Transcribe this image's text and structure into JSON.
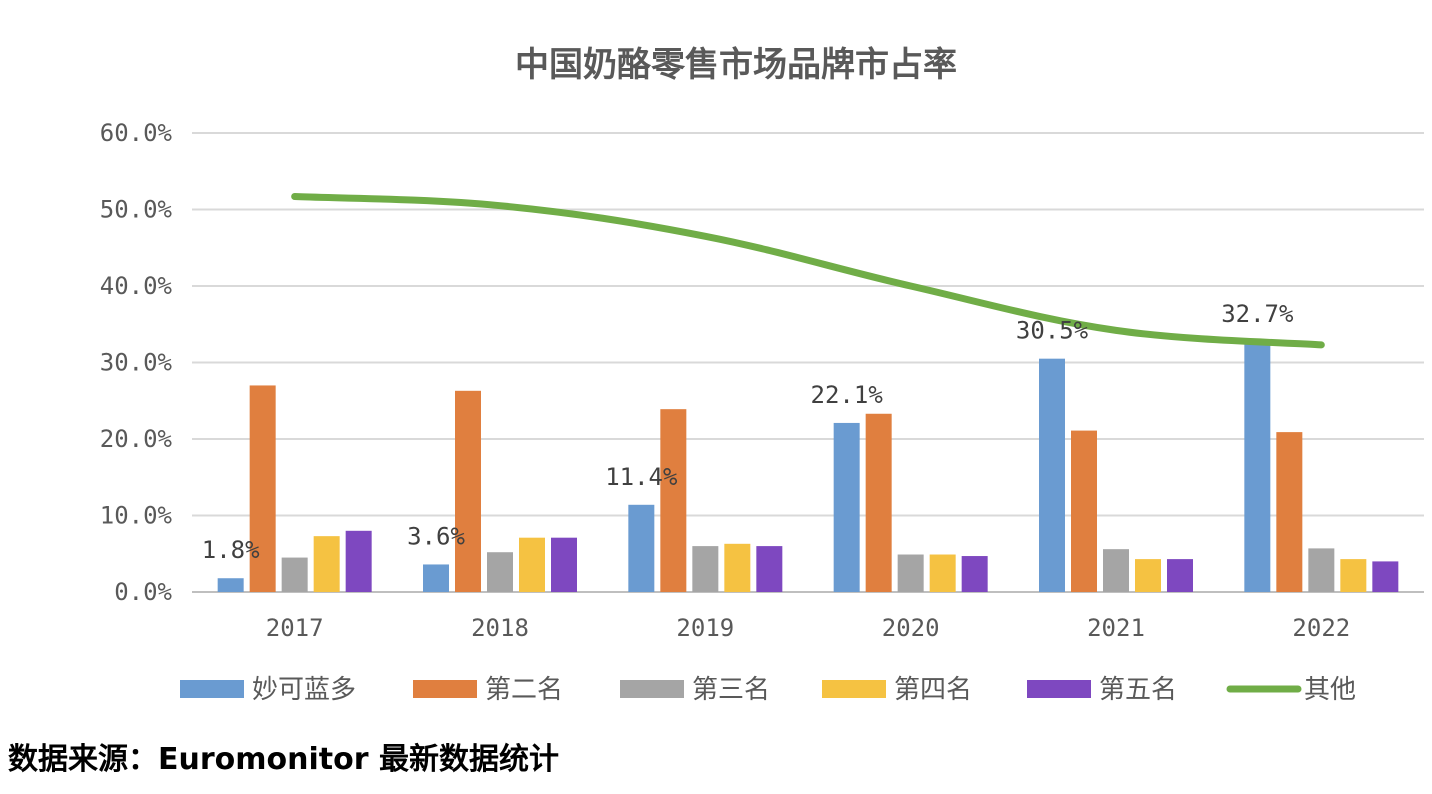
{
  "chart_data": {
    "type": "bar",
    "title": "中国奶酪零售市场品牌市占率",
    "categories": [
      "2017",
      "2018",
      "2019",
      "2020",
      "2021",
      "2022"
    ],
    "ylim": [
      0,
      60
    ],
    "yticks": [
      "0.0%",
      "10.0%",
      "20.0%",
      "30.0%",
      "40.0%",
      "50.0%",
      "60.0%"
    ],
    "ytick_values": [
      0,
      10,
      20,
      30,
      40,
      50,
      60
    ],
    "grid": true,
    "legend_position": "bottom",
    "series": [
      {
        "name": "妙可蓝多",
        "type": "bar",
        "color": "#6A9BD1",
        "values": [
          1.8,
          3.6,
          11.4,
          22.1,
          30.5,
          32.7
        ],
        "labels": [
          "1.8%",
          "3.6%",
          "11.4%",
          "22.1%",
          "30.5%",
          "32.7%"
        ]
      },
      {
        "name": "第二名",
        "type": "bar",
        "color": "#E07F3F",
        "values": [
          27.0,
          26.3,
          23.9,
          23.3,
          21.1,
          20.9
        ]
      },
      {
        "name": "第三名",
        "type": "bar",
        "color": "#A5A5A5",
        "values": [
          4.5,
          5.2,
          6.0,
          4.9,
          5.6,
          5.7
        ]
      },
      {
        "name": "第四名",
        "type": "bar",
        "color": "#F5C242",
        "values": [
          7.3,
          7.1,
          6.3,
          4.9,
          4.3,
          4.3
        ]
      },
      {
        "name": "第五名",
        "type": "bar",
        "color": "#7E48C0",
        "values": [
          8.0,
          7.1,
          6.0,
          4.7,
          4.3,
          4.0
        ]
      },
      {
        "name": "其他",
        "type": "line",
        "color": "#70AD47",
        "values": [
          51.7,
          50.5,
          46.5,
          40.0,
          34.2,
          32.3
        ]
      }
    ]
  },
  "footer": {
    "source": "数据来源：Euromonitor 最新数据统计"
  }
}
